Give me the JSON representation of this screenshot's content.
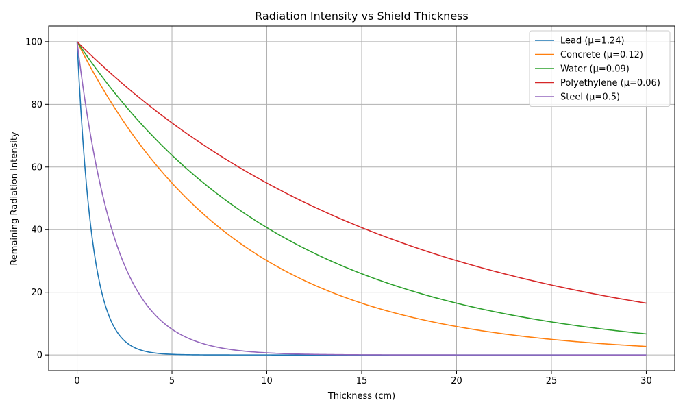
{
  "chart_data": {
    "type": "line",
    "title": "Radiation Intensity vs Shield Thickness",
    "xlabel": "Thickness (cm)",
    "ylabel": "Remaining Radiation Intensity",
    "xlim": [
      -1.5,
      31.5
    ],
    "ylim": [
      -5,
      105
    ],
    "xticks": [
      0,
      5,
      10,
      15,
      20,
      25,
      30
    ],
    "yticks": [
      0,
      20,
      40,
      60,
      80,
      100
    ],
    "grid": true,
    "legend_position": "top-right",
    "initial_intensity": 100,
    "x_range": [
      0,
      30
    ],
    "series": [
      {
        "name": "Lead (μ=1.24)",
        "mu": 1.24,
        "color": "#1f77b4"
      },
      {
        "name": "Concrete (μ=0.12)",
        "mu": 0.12,
        "color": "#ff7f0e"
      },
      {
        "name": "Water (μ=0.09)",
        "mu": 0.09,
        "color": "#2ca02c"
      },
      {
        "name": "Polyethylene (μ=0.06)",
        "mu": 0.06,
        "color": "#d62728"
      },
      {
        "name": "Steel (μ=0.5)",
        "mu": 0.5,
        "color": "#9467bd"
      }
    ]
  }
}
